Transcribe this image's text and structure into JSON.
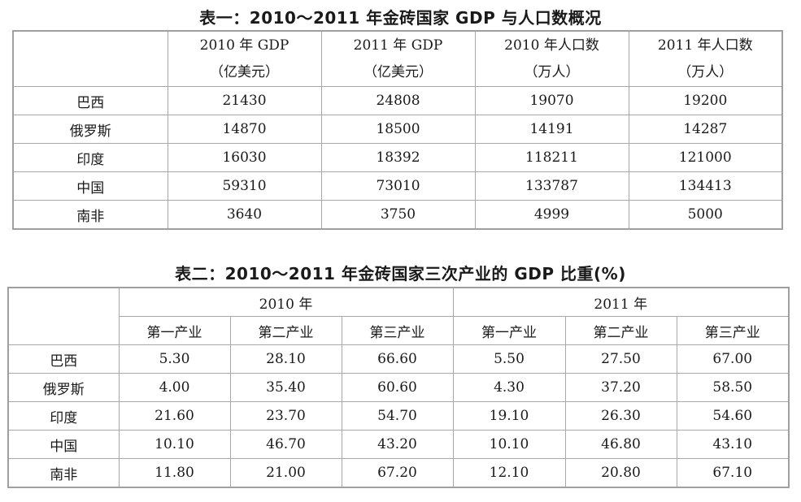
{
  "table1": {
    "title": "表一：2010～2011 年金砖国家 GDP 与人口数概况",
    "headers": [
      [
        "2010 年 GDP",
        "（亿美元）"
      ],
      [
        "2011 年 GDP",
        "（亿美元）"
      ],
      [
        "2010 年人口数",
        "（万人）"
      ],
      [
        "2011 年人口数",
        "（万人）"
      ]
    ],
    "rows": [
      {
        "country": "巴西",
        "values": [
          "21430",
          "24808",
          "19070",
          "19200"
        ]
      },
      {
        "country": "俄罗斯",
        "values": [
          "14870",
          "18500",
          "14191",
          "14287"
        ]
      },
      {
        "country": "印度",
        "values": [
          "16030",
          "18392",
          "118211",
          "121000"
        ]
      },
      {
        "country": "中国",
        "values": [
          "59310",
          "73010",
          "133787",
          "134413"
        ]
      },
      {
        "country": "南非",
        "values": [
          "3640",
          "3750",
          "4999",
          "5000"
        ]
      }
    ]
  },
  "table2": {
    "title": "表二：2010～2011 年金砖国家三次产业的 GDP 比重(%)",
    "years": [
      "2010 年",
      "2011 年"
    ],
    "subheaders": [
      "第一产业",
      "第二产业",
      "第三产业",
      "第一产业",
      "第二产业",
      "第三产业"
    ],
    "rows": [
      {
        "country": "巴西",
        "values": [
          "5.30",
          "28.10",
          "66.60",
          "5.50",
          "27.50",
          "67.00"
        ]
      },
      {
        "country": "俄罗斯",
        "values": [
          "4.00",
          "35.40",
          "60.60",
          "4.30",
          "37.20",
          "58.50"
        ]
      },
      {
        "country": "印度",
        "values": [
          "21.60",
          "23.70",
          "54.70",
          "19.10",
          "26.30",
          "54.60"
        ]
      },
      {
        "country": "中国",
        "values": [
          "10.10",
          "46.70",
          "43.20",
          "10.10",
          "46.80",
          "43.10"
        ]
      },
      {
        "country": "南非",
        "values": [
          "11.80",
          "21.00",
          "67.20",
          "12.10",
          "20.80",
          "67.10"
        ]
      }
    ]
  }
}
